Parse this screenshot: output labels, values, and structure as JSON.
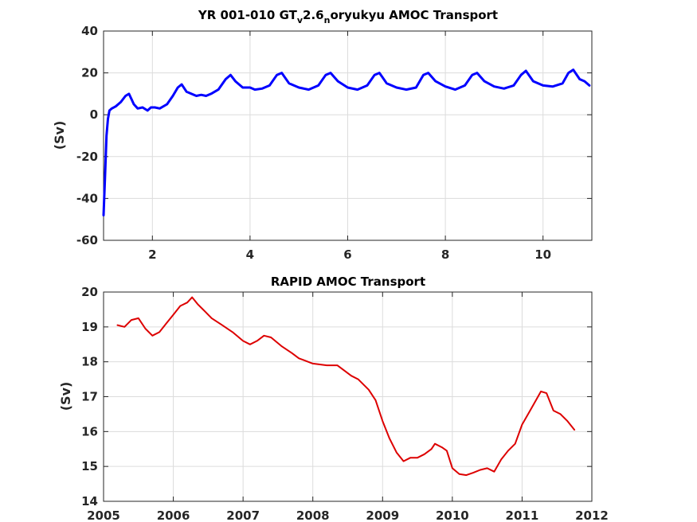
{
  "chart_data": [
    {
      "type": "line",
      "title_parts": [
        "YR 001-010 GT",
        "v",
        "2.6",
        "n",
        "oryukyu AMOC Transport"
      ],
      "xlabel": "",
      "ylabel": "(Sv)",
      "xlim": [
        1,
        11
      ],
      "ylim": [
        -60,
        40
      ],
      "xticks": [
        2,
        4,
        6,
        8,
        10
      ],
      "yticks": [
        -60,
        -40,
        -20,
        0,
        20,
        40
      ],
      "grid": true,
      "series": [
        {
          "color": "#0000ff",
          "x": [
            1.0,
            1.03,
            1.06,
            1.09,
            1.12,
            1.17,
            1.25,
            1.35,
            1.45,
            1.52,
            1.58,
            1.62,
            1.7,
            1.8,
            1.9,
            1.97,
            2.05,
            2.15,
            2.3,
            2.42,
            2.52,
            2.6,
            2.7,
            2.8,
            2.9,
            3.0,
            3.1,
            3.2,
            3.35,
            3.5,
            3.6,
            3.7,
            3.85,
            4.0,
            4.1,
            4.25,
            4.4,
            4.55,
            4.65,
            4.8,
            5.0,
            5.2,
            5.4,
            5.55,
            5.65,
            5.8,
            6.0,
            6.2,
            6.4,
            6.55,
            6.65,
            6.8,
            7.0,
            7.2,
            7.4,
            7.55,
            7.65,
            7.8,
            8.0,
            8.2,
            8.4,
            8.55,
            8.65,
            8.8,
            9.0,
            9.2,
            9.4,
            9.55,
            9.65,
            9.8,
            10.0,
            10.2,
            10.4,
            10.52,
            10.62,
            10.75,
            10.85,
            10.95
          ],
          "y": [
            -48,
            -30,
            -10,
            -2,
            2,
            3,
            4,
            6,
            9,
            10,
            7,
            5,
            3,
            3.5,
            2,
            3.5,
            3.5,
            3,
            5,
            9,
            13,
            14.5,
            11,
            10,
            9,
            9.5,
            9,
            10,
            12,
            17,
            19,
            16,
            13,
            13,
            12,
            12.5,
            14,
            19,
            20,
            15,
            13,
            12,
            14,
            19,
            20,
            16,
            13,
            12,
            14,
            19,
            20,
            15,
            13,
            12,
            13,
            19,
            20,
            16,
            13.5,
            12,
            14,
            19,
            20,
            16,
            13.5,
            12.5,
            14,
            19,
            21,
            16,
            14,
            13.5,
            15,
            20,
            21.5,
            17,
            16,
            14
          ]
        }
      ]
    },
    {
      "type": "line",
      "title": "RAPID AMOC Transport",
      "xlabel": "",
      "ylabel": "(Sv)",
      "xlim": [
        2005,
        2012
      ],
      "ylim": [
        14,
        20
      ],
      "xticks": [
        2005,
        2006,
        2007,
        2008,
        2009,
        2010,
        2011,
        2012
      ],
      "yticks": [
        14,
        15,
        16,
        17,
        18,
        19,
        20
      ],
      "grid": true,
      "series": [
        {
          "color": "#dd0000",
          "x": [
            2005.2,
            2005.3,
            2005.4,
            2005.5,
            2005.6,
            2005.7,
            2005.8,
            2005.9,
            2006.0,
            2006.1,
            2006.2,
            2006.27,
            2006.35,
            2006.45,
            2006.55,
            2006.7,
            2006.85,
            2007.0,
            2007.1,
            2007.2,
            2007.3,
            2007.4,
            2007.55,
            2007.7,
            2007.8,
            2008.0,
            2008.2,
            2008.35,
            2008.45,
            2008.55,
            2008.65,
            2008.8,
            2008.9,
            2009.0,
            2009.1,
            2009.2,
            2009.3,
            2009.4,
            2009.5,
            2009.6,
            2009.7,
            2009.75,
            2009.85,
            2009.92,
            2010.0,
            2010.1,
            2010.2,
            2010.3,
            2010.4,
            2010.5,
            2010.6,
            2010.7,
            2010.8,
            2010.9,
            2011.0,
            2011.1,
            2011.2,
            2011.27,
            2011.35,
            2011.45,
            2011.55,
            2011.65,
            2011.75
          ],
          "y": [
            19.05,
            19.0,
            19.2,
            19.25,
            18.95,
            18.75,
            18.85,
            19.1,
            19.35,
            19.6,
            19.7,
            19.85,
            19.65,
            19.45,
            19.25,
            19.05,
            18.85,
            18.6,
            18.5,
            18.6,
            18.75,
            18.7,
            18.45,
            18.25,
            18.1,
            17.95,
            17.9,
            17.9,
            17.75,
            17.6,
            17.5,
            17.2,
            16.9,
            16.3,
            15.8,
            15.4,
            15.15,
            15.25,
            15.25,
            15.35,
            15.5,
            15.65,
            15.55,
            15.45,
            14.95,
            14.78,
            14.75,
            14.82,
            14.9,
            14.95,
            14.85,
            15.2,
            15.45,
            15.65,
            16.2,
            16.55,
            16.9,
            17.15,
            17.1,
            16.6,
            16.5,
            16.3,
            16.05
          ]
        }
      ]
    }
  ]
}
